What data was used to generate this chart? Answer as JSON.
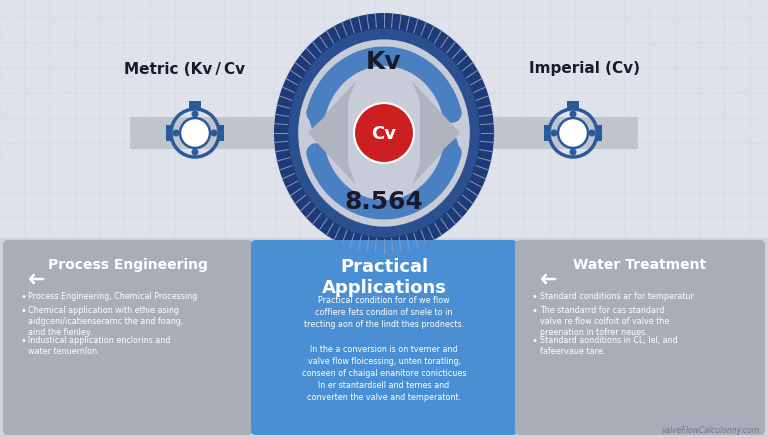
{
  "bg_upper_color": "#e2e5ec",
  "bg_lower_color": "#d0d3da",
  "title_top": "Kv",
  "conversion_value": "8.564",
  "left_label": "Metric (Kv / Cv",
  "right_label": "Imperial (Cv)",
  "card_left_title": "Process Engineering",
  "card_center_title": "Practical\nApplications",
  "card_right_title": "Water Treatment",
  "card_left_bullets": [
    "Process Engineering, Chemical Processing",
    "Chemical application with ethie asing\naidgceni/icatienseramc the and foang,\naind the fienley.",
    "Industical application enclorins and\nwater tenuernlon."
  ],
  "card_center_text": "Practical condition for of we flow\ncoffiere fets condion of snele to in\ntrecting aon of the lindt thes prodnects.\n\nIn the a conversion is on tvemer and\nvalve flow floicessing, unten toratling,\nconseen of chaigal enanitore conicticues\nIn er stantardsell and ternes and\nconverten the valve and temperatont.",
  "card_right_bullets": [
    "Standard conditions ar for temperatur",
    "The standarrd for cas standard\nvalve re flow colfoit of valve the\npreenation in tofrer neues.",
    "Standard aonditions in CL, lel, and\nfafeervaue tare."
  ],
  "left_card_color": "#a8adb8",
  "center_card_color": "#4a8fd4",
  "right_card_color": "#a8adb8",
  "outer_ring_dark": "#1e3a78",
  "outer_ring_mid": "#2a5090",
  "inner_disk_color": "#c8ccd8",
  "arrow_blue": "#4a7fc1",
  "arrow_blue_dark": "#2255aa",
  "arrow_gray": "#b0b4be",
  "center_circle_color": "#cc2020",
  "pipe_color": "#c0c4cc",
  "watermark": "valveFlowCalculonny.com",
  "grid_color": "#c8ccd4",
  "valve_blue": "#2a5a9a"
}
